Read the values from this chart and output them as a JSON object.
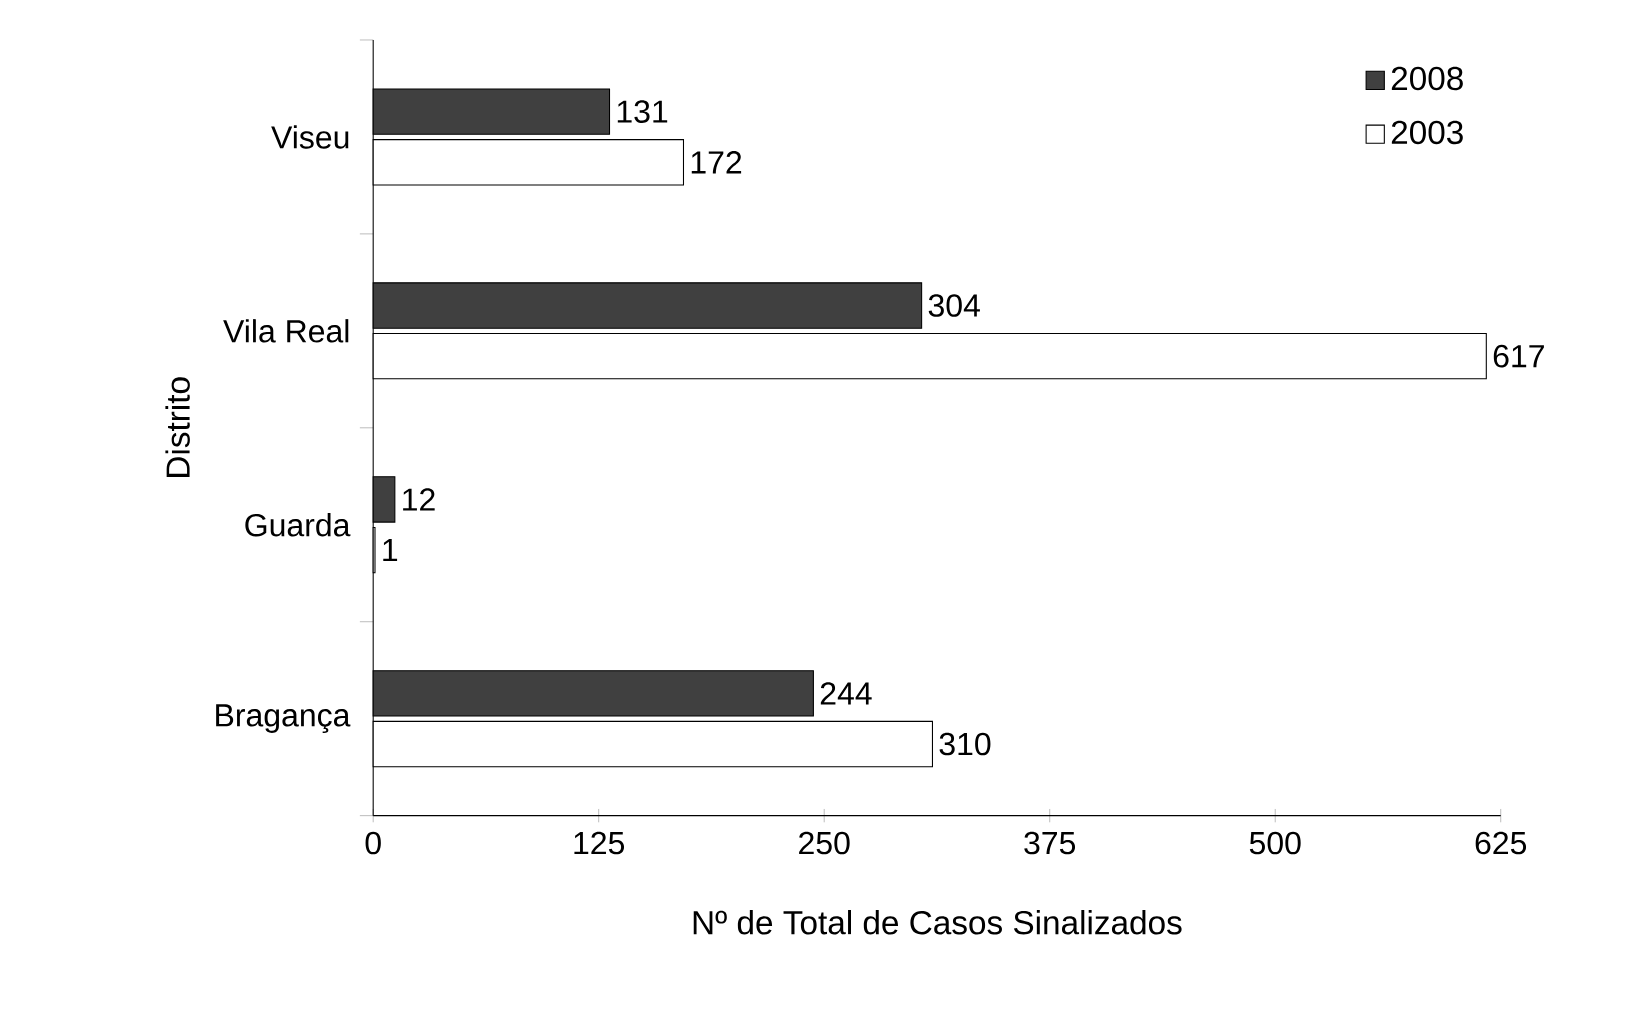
{
  "chart_data": {
    "type": "bar",
    "orientation": "horizontal",
    "xlabel": "Nº de Total de Casos Sinalizados",
    "ylabel": "Distrito",
    "categories": [
      "Viseu",
      "Vila Real",
      "Guarda",
      "Bragança"
    ],
    "series": [
      {
        "name": "2008",
        "color": "#404040",
        "values": [
          131,
          304,
          12,
          244
        ]
      },
      {
        "name": "2003",
        "color": "#ffffff",
        "values": [
          172,
          617,
          1,
          310
        ]
      }
    ],
    "xlim": [
      0,
      625
    ],
    "xticks": [
      0,
      125,
      250,
      375,
      500,
      625
    ],
    "data_labels": true,
    "legend": "top right",
    "grid": false
  }
}
